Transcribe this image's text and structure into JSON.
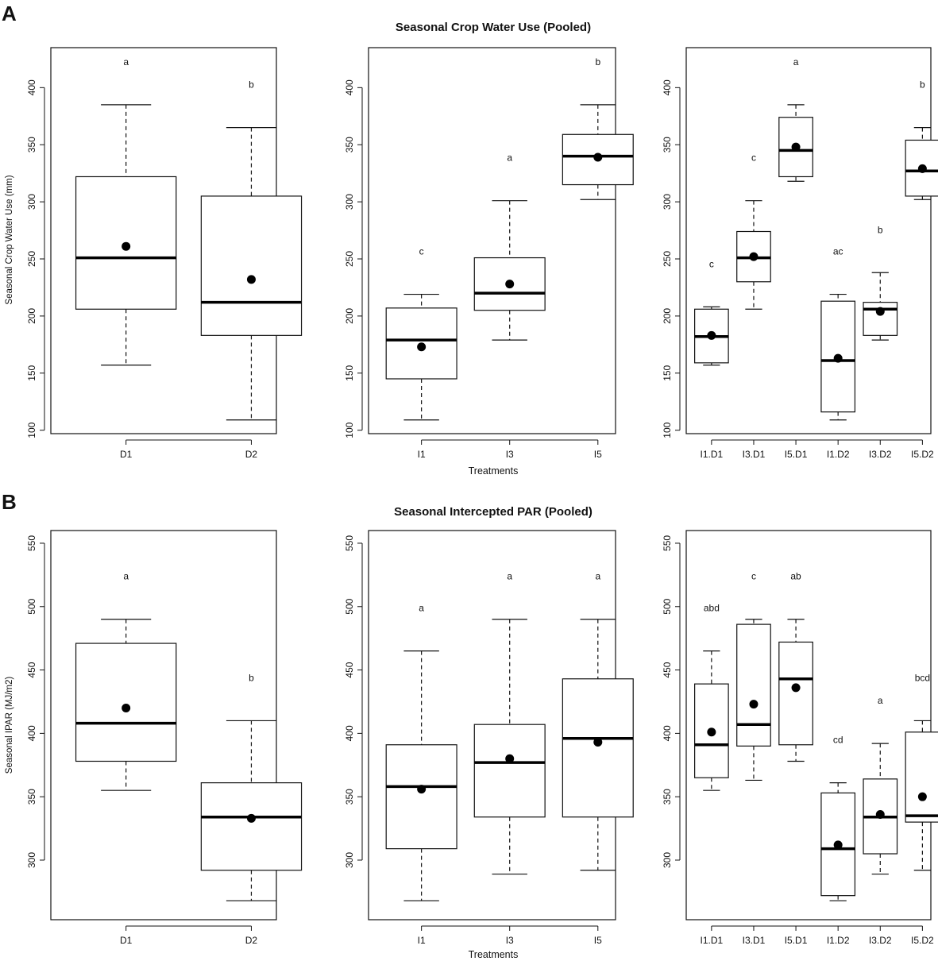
{
  "figure": {
    "panels": [
      {
        "letter": "A",
        "title": "Seasonal Crop Water Use (Pooled)",
        "xlabel": "Treatments",
        "ylabel": "Seasonal Crop Water Use (mm)"
      },
      {
        "letter": "B",
        "title": "Seasonal Intercepted PAR (Pooled)",
        "xlabel": "Treatments",
        "ylabel": "Seasonal IPAR (MJ/m2)"
      }
    ]
  },
  "chart_data": [
    {
      "type": "boxplot",
      "panel": "A",
      "subplot": 1,
      "title": "Seasonal Crop Water Use (Pooled)",
      "xlabel": "",
      "ylabel": "Seasonal Crop Water Use (mm)",
      "ylim": [
        97,
        435
      ],
      "yticks": [
        100,
        150,
        200,
        250,
        300,
        350,
        400
      ],
      "boxes": [
        {
          "category": "D1",
          "min": 157,
          "q1": 206,
          "median": 251,
          "q3": 322,
          "max": 385,
          "mean": 261,
          "letter": "a"
        },
        {
          "category": "D2",
          "min": 109,
          "q1": 183,
          "median": 212,
          "q3": 305,
          "max": 365,
          "mean": 232,
          "letter": "b"
        }
      ]
    },
    {
      "type": "boxplot",
      "panel": "A",
      "subplot": 2,
      "title": "",
      "xlabel": "Treatments",
      "ylabel": "",
      "ylim": [
        97,
        435
      ],
      "yticks": [
        100,
        150,
        200,
        250,
        300,
        350,
        400
      ],
      "boxes": [
        {
          "category": "I1",
          "min": 109,
          "q1": 145,
          "median": 179,
          "q3": 207,
          "max": 219,
          "mean": 173,
          "letter": "c"
        },
        {
          "category": "I3",
          "min": 179,
          "q1": 205,
          "median": 220,
          "q3": 251,
          "max": 301,
          "mean": 228,
          "letter": "a"
        },
        {
          "category": "I5",
          "min": 302,
          "q1": 315,
          "median": 340,
          "q3": 359,
          "max": 385,
          "mean": 339,
          "letter": "b"
        }
      ]
    },
    {
      "type": "boxplot",
      "panel": "A",
      "subplot": 3,
      "title": "",
      "xlabel": "",
      "ylabel": "",
      "ylim": [
        97,
        435
      ],
      "yticks": [
        100,
        150,
        200,
        250,
        300,
        350,
        400
      ],
      "boxes": [
        {
          "category": "I1.D1",
          "min": 157,
          "q1": 159,
          "median": 182,
          "q3": 206,
          "max": 208,
          "mean": 183,
          "letter": "c"
        },
        {
          "category": "I3.D1",
          "min": 206,
          "q1": 230,
          "median": 251,
          "q3": 274,
          "max": 301,
          "mean": 252,
          "letter": "c"
        },
        {
          "category": "I5.D1",
          "min": 318,
          "q1": 322,
          "median": 345,
          "q3": 374,
          "max": 385,
          "mean": 348,
          "letter": "a"
        },
        {
          "category": "I1.D2",
          "min": 109,
          "q1": 116,
          "median": 161,
          "q3": 213,
          "max": 219,
          "mean": 163,
          "letter": "ac"
        },
        {
          "category": "I3.D2",
          "min": 179,
          "q1": 183,
          "median": 206,
          "q3": 212,
          "max": 238,
          "mean": 204,
          "letter": "b"
        },
        {
          "category": "I5.D2",
          "min": 302,
          "q1": 305,
          "median": 327,
          "q3": 354,
          "max": 365,
          "mean": 329,
          "letter": "b"
        }
      ]
    },
    {
      "type": "boxplot",
      "panel": "B",
      "subplot": 1,
      "title": "Seasonal Intercepted PAR (Pooled)",
      "xlabel": "",
      "ylabel": "Seasonal IPAR (MJ/m2)",
      "ylim": [
        253,
        560
      ],
      "yticks": [
        300,
        350,
        400,
        450,
        500,
        550
      ],
      "boxes": [
        {
          "category": "D1",
          "min": 355,
          "q1": 378,
          "median": 408,
          "q3": 471,
          "max": 490,
          "mean": 420,
          "letter": "a"
        },
        {
          "category": "D2",
          "min": 268,
          "q1": 292,
          "median": 334,
          "q3": 361,
          "max": 410,
          "mean": 333,
          "letter": "b"
        }
      ]
    },
    {
      "type": "boxplot",
      "panel": "B",
      "subplot": 2,
      "title": "",
      "xlabel": "Treatments",
      "ylabel": "",
      "ylim": [
        253,
        560
      ],
      "yticks": [
        300,
        350,
        400,
        450,
        500,
        550
      ],
      "boxes": [
        {
          "category": "I1",
          "min": 268,
          "q1": 309,
          "median": 358,
          "q3": 391,
          "max": 465,
          "mean": 356,
          "letter": "a"
        },
        {
          "category": "I3",
          "min": 289,
          "q1": 334,
          "median": 377,
          "q3": 407,
          "max": 490,
          "mean": 380,
          "letter": "a"
        },
        {
          "category": "I5",
          "min": 292,
          "q1": 334,
          "median": 396,
          "q3": 443,
          "max": 490,
          "mean": 393,
          "letter": "a"
        }
      ]
    },
    {
      "type": "boxplot",
      "panel": "B",
      "subplot": 3,
      "title": "",
      "xlabel": "",
      "ylabel": "",
      "ylim": [
        253,
        560
      ],
      "yticks": [
        300,
        350,
        400,
        450,
        500,
        550
      ],
      "boxes": [
        {
          "category": "I1.D1",
          "min": 355,
          "q1": 365,
          "median": 391,
          "q3": 439,
          "max": 465,
          "mean": 401,
          "letter": "abd"
        },
        {
          "category": "I3.D1",
          "min": 363,
          "q1": 390,
          "median": 407,
          "q3": 486,
          "max": 490,
          "mean": 423,
          "letter": "c"
        },
        {
          "category": "I5.D1",
          "min": 378,
          "q1": 391,
          "median": 443,
          "q3": 472,
          "max": 490,
          "mean": 436,
          "letter": "ab"
        },
        {
          "category": "I1.D2",
          "min": 268,
          "q1": 272,
          "median": 309,
          "q3": 353,
          "max": 361,
          "mean": 312,
          "letter": "cd"
        },
        {
          "category": "I3.D2",
          "min": 289,
          "q1": 305,
          "median": 334,
          "q3": 364,
          "max": 392,
          "mean": 336,
          "letter": "a"
        },
        {
          "category": "I5.D2",
          "min": 292,
          "q1": 330,
          "median": 335,
          "q3": 401,
          "max": 410,
          "mean": 350,
          "letter": "bcd"
        }
      ]
    }
  ]
}
